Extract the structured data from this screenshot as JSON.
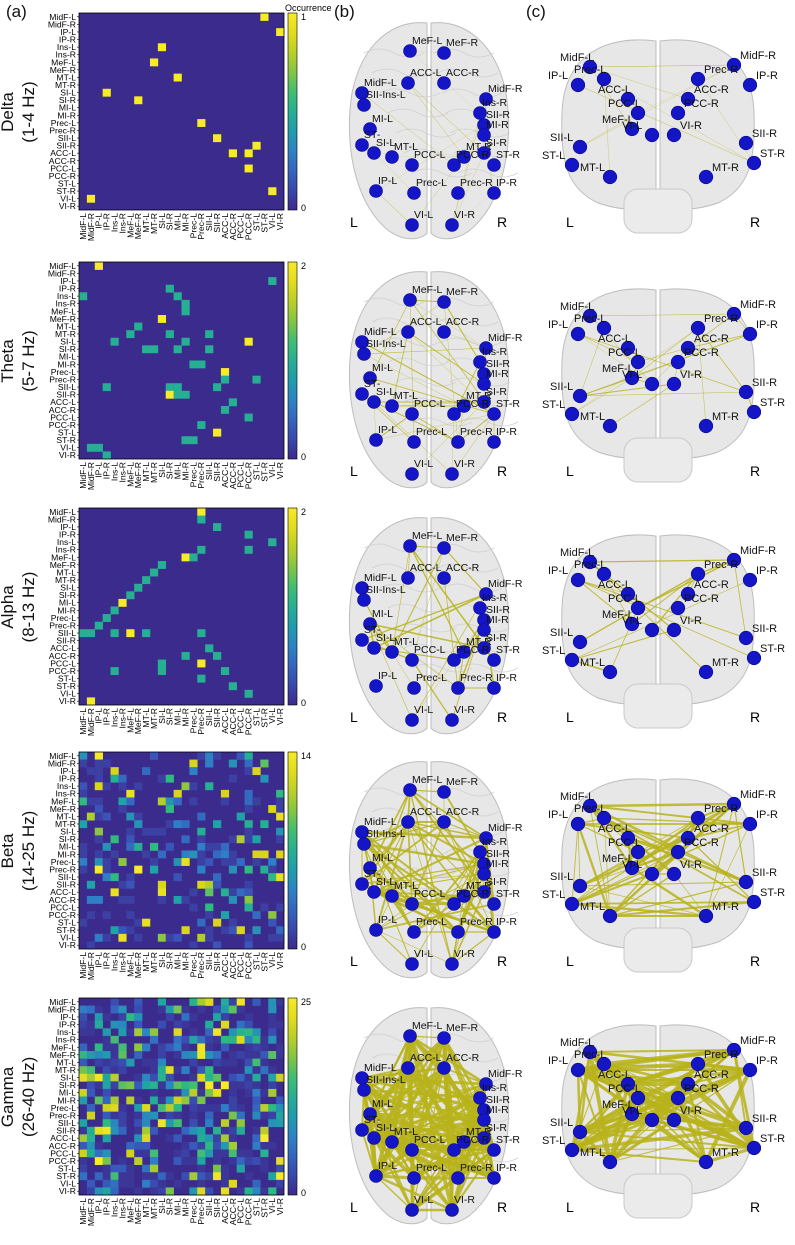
{
  "panels": {
    "a": "(a)",
    "b": "(b)",
    "c": "(c)"
  },
  "colorbar_title": "Occurrence",
  "regions": [
    "MidF-L",
    "MidF-R",
    "IP-L",
    "IP-R",
    "Ins-L",
    "Ins-R",
    "MeF-L",
    "MeF-R",
    "MT-L",
    "MT-R",
    "SI-L",
    "SI-R",
    "MI-L",
    "MI-R",
    "Prec-L",
    "Prec-R",
    "SII-L",
    "SII-R",
    "ACC-L",
    "ACC-R",
    "PCC-L",
    "PCC-R",
    "ST-L",
    "ST-R",
    "VI-L",
    "VI-R"
  ],
  "bands": [
    {
      "name": "Delta",
      "range": "(1-4 Hz)",
      "cmax": 1,
      "ticks": [
        "1",
        "0"
      ]
    },
    {
      "name": "Theta",
      "range": "(5-7 Hz)",
      "cmax": 2,
      "ticks": [
        "2",
        "0"
      ]
    },
    {
      "name": "Alpha",
      "range": "(8-13 Hz)",
      "cmax": 2,
      "ticks": [
        "2",
        "0"
      ]
    },
    {
      "name": "Beta",
      "range": "(14-25 Hz)",
      "cmax": 14,
      "ticks": [
        "14",
        "0"
      ]
    },
    {
      "name": "Gamma",
      "range": "(26-40 Hz)",
      "cmax": 25,
      "ticks": [
        "25",
        "0"
      ]
    }
  ],
  "axial_labels": [
    "MeF-L",
    "MeF-R",
    "ACC-L",
    "ACC-R",
    "MidF-L",
    "MidF-R",
    "SII-Ins-L",
    "Ins-R",
    "SII-R",
    "MI-L",
    "MI-R",
    "ST-",
    "SI-L",
    "MT-L",
    "MT-R",
    "SI-R",
    "ST-R",
    "PCC-L",
    "PCC-R",
    "IP-L",
    "Prec-L",
    "Prec-R",
    "IP-R",
    "VI-L",
    "VI-R"
  ],
  "coronal_labels": [
    "MidF-L",
    "MidF-R",
    "IP-L",
    "IP-R",
    "Prec-L",
    "Prec-R",
    "ACC-L",
    "ACC-R",
    "PCC-L",
    "PCC-R",
    "MeF-L",
    "VI-L",
    "VI-R",
    "SII-L",
    "SII-R",
    "ST-L",
    "ST-R",
    "MT-L",
    "MT-R"
  ],
  "side_left": "L",
  "side_right": "R",
  "matrix_entries": {
    "Delta": [
      [
        0,
        23
      ],
      [
        2,
        25
      ],
      [
        4,
        10
      ],
      [
        6,
        9
      ],
      [
        8,
        12
      ],
      [
        10,
        3
      ],
      [
        11,
        7
      ],
      [
        14,
        15
      ],
      [
        16,
        17
      ],
      [
        17,
        22
      ],
      [
        18,
        19
      ],
      [
        18,
        21
      ],
      [
        20,
        21
      ],
      [
        23,
        24
      ],
      [
        24,
        1
      ]
    ],
    "Theta": [
      [
        0,
        2
      ],
      [
        2,
        24
      ],
      [
        3,
        11
      ],
      [
        4,
        0
      ],
      [
        4,
        12
      ],
      [
        5,
        13
      ],
      [
        6,
        13
      ],
      [
        7,
        10
      ],
      [
        8,
        7
      ],
      [
        9,
        6
      ],
      [
        9,
        11
      ],
      [
        9,
        16
      ],
      [
        10,
        4
      ],
      [
        10,
        13
      ],
      [
        10,
        21
      ],
      [
        11,
        8
      ],
      [
        11,
        9
      ],
      [
        11,
        12
      ],
      [
        11,
        16
      ],
      [
        13,
        14
      ],
      [
        13,
        15
      ],
      [
        14,
        18
      ],
      [
        15,
        18
      ],
      [
        15,
        22
      ],
      [
        16,
        3
      ],
      [
        16,
        11
      ],
      [
        16,
        12
      ],
      [
        16,
        17
      ],
      [
        17,
        11
      ],
      [
        17,
        12
      ],
      [
        17,
        13
      ],
      [
        18,
        19
      ],
      [
        19,
        18
      ],
      [
        20,
        21
      ],
      [
        21,
        15
      ],
      [
        22,
        17
      ],
      [
        23,
        13
      ],
      [
        23,
        14
      ],
      [
        24,
        1
      ],
      [
        24,
        2
      ],
      [
        25,
        3
      ]
    ],
    "Alpha": [
      [
        0,
        15
      ],
      [
        1,
        15
      ],
      [
        2,
        17
      ],
      [
        3,
        21
      ],
      [
        4,
        24
      ],
      [
        5,
        15
      ],
      [
        5,
        21
      ],
      [
        6,
        13
      ],
      [
        6,
        14
      ],
      [
        7,
        10
      ],
      [
        8,
        9
      ],
      [
        9,
        8
      ],
      [
        10,
        7
      ],
      [
        11,
        6
      ],
      [
        12,
        5
      ],
      [
        13,
        4
      ],
      [
        14,
        3
      ],
      [
        15,
        2
      ],
      [
        16,
        0
      ],
      [
        16,
        1
      ],
      [
        16,
        4
      ],
      [
        16,
        6
      ],
      [
        16,
        8
      ],
      [
        16,
        15
      ],
      [
        18,
        16
      ],
      [
        19,
        13
      ],
      [
        19,
        17
      ],
      [
        20,
        10
      ],
      [
        20,
        15
      ],
      [
        21,
        4
      ],
      [
        21,
        10
      ],
      [
        21,
        18
      ],
      [
        22,
        15
      ],
      [
        23,
        19
      ],
      [
        24,
        21
      ],
      [
        25,
        1
      ]
    ]
  }
}
